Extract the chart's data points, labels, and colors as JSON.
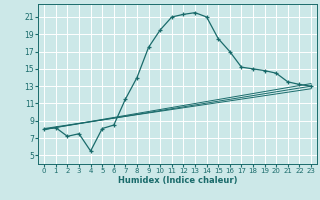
{
  "xlabel": "Humidex (Indice chaleur)",
  "ylabel": "",
  "bg_color": "#cce8e8",
  "grid_color": "#ffffff",
  "line_color": "#1a6b6b",
  "xlim": [
    -0.5,
    23.5
  ],
  "ylim": [
    4,
    22.5
  ],
  "yticks": [
    5,
    7,
    9,
    11,
    13,
    15,
    17,
    19,
    21
  ],
  "xticks": [
    0,
    1,
    2,
    3,
    4,
    5,
    6,
    7,
    8,
    9,
    10,
    11,
    12,
    13,
    14,
    15,
    16,
    17,
    18,
    19,
    20,
    21,
    22,
    23
  ],
  "main_x": [
    0,
    1,
    2,
    3,
    4,
    5,
    6,
    7,
    8,
    9,
    10,
    11,
    12,
    13,
    14,
    15,
    16,
    17,
    18,
    19,
    20,
    21,
    22,
    23
  ],
  "main_y": [
    8.0,
    8.2,
    7.2,
    7.5,
    5.5,
    8.1,
    8.5,
    11.5,
    14.0,
    17.5,
    19.5,
    21.0,
    21.3,
    21.5,
    21.0,
    18.5,
    17.0,
    15.2,
    15.0,
    14.8,
    14.5,
    13.5,
    13.2,
    13.0
  ],
  "line2_x": [
    0,
    23
  ],
  "line2_y": [
    8.0,
    13.0
  ],
  "line3_x": [
    0,
    23
  ],
  "line3_y": [
    8.0,
    13.3
  ],
  "line4_x": [
    0,
    23
  ],
  "line4_y": [
    8.1,
    12.7
  ]
}
